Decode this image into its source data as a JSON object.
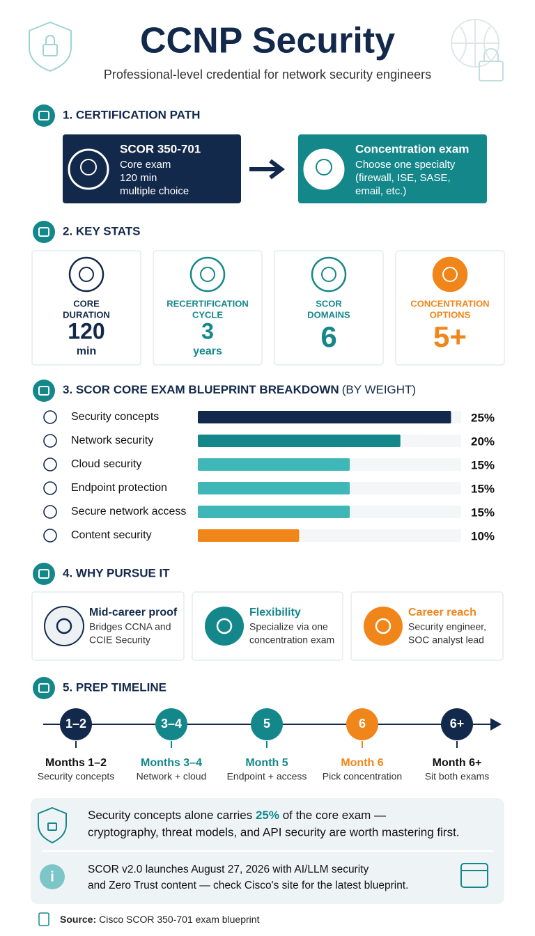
{
  "header": {
    "title": "CCNP Security",
    "subtitle": "Professional-level credential for network security engineers"
  },
  "path": {
    "heading": "1. CERTIFICATION PATH",
    "steps": [
      {
        "title": "SCOR 350-701",
        "lines": [
          "Core exam",
          "120 min",
          "multiple choice"
        ],
        "color": "#13294b"
      },
      {
        "title": "Concentration exam",
        "lines": [
          "Choose one specialty",
          "(firewall, ISE, SASE,",
          "email, etc.)"
        ],
        "color": "#14878b"
      }
    ]
  },
  "stats": {
    "heading": "2. KEY STATS",
    "cards": [
      {
        "label": [
          "CORE",
          "DURATION"
        ],
        "value": 120,
        "unit": "min",
        "color": "#13294b",
        "label_color": "#13294b"
      },
      {
        "label": [
          "RECERTIFICATION",
          "CYCLE"
        ],
        "value": 3,
        "unit": "years",
        "color": "#14878b",
        "label_color": "#14878b"
      },
      {
        "label": [
          "SCOR",
          "DOMAINS"
        ],
        "value": 6,
        "color": "#14878b",
        "label_color": "#14878b"
      },
      {
        "label": [
          "CONCENTRATION",
          "OPTIONS"
        ],
        "value": "5+",
        "color": "#f0851a",
        "label_color": "#f0851a"
      }
    ]
  },
  "chart_data": {
    "type": "bar",
    "orientation": "horizontal",
    "title": "3. SCOR CORE EXAM BLUEPRINT BREAKDOWN",
    "subtitle": "(BY WEIGHT)",
    "categories": [
      "Security concepts",
      "Network security",
      "Cloud security",
      "Endpoint protection",
      "Secure network access",
      "Content security"
    ],
    "values": [
      25,
      20,
      15,
      15,
      15,
      10
    ],
    "value_labels": [
      "25%",
      "20%",
      "15%",
      "15%",
      "15%",
      "10%"
    ],
    "colors": [
      "#13294b",
      "#14878b",
      "#3fb6b8",
      "#3fb6b8",
      "#3fb6b8",
      "#f0851a"
    ],
    "xlim": [
      0,
      26
    ]
  },
  "why": {
    "heading": "4. WHY PURSUE IT",
    "cards": [
      {
        "title": "Mid-career proof",
        "lines": [
          "Bridges CCNA and",
          "CCIE Security"
        ],
        "color": "#13294b"
      },
      {
        "title": "Flexibility",
        "lines": [
          "Specialize via one",
          "concentration exam"
        ],
        "color": "#14878b"
      },
      {
        "title": "Career reach",
        "lines": [
          "Security engineer,",
          "SOC analyst lead"
        ],
        "color": "#f0851a"
      }
    ]
  },
  "timeline": {
    "heading": "5. PREP TIMELINE",
    "steps": [
      {
        "badge": "1–2",
        "title": "Months 1–2",
        "desc": "Security concepts",
        "color": "#13294b"
      },
      {
        "badge": "3–4",
        "title": "Months 3–4",
        "desc": "Network + cloud",
        "color": "#14878b"
      },
      {
        "badge": "5",
        "title": "Month 5",
        "desc": "Endpoint + access",
        "color": "#14878b"
      },
      {
        "badge": "6",
        "title": "Month 6",
        "desc": "Pick concentration",
        "color": "#f0851a"
      },
      {
        "badge": "6+",
        "title": "Month 6+",
        "desc": "Sit both exams",
        "color": "#13294b"
      }
    ]
  },
  "notes": [
    {
      "line1": [
        "Security concepts alone carries ",
        "25%",
        " of the core exam —"
      ],
      "line2": "cryptography, threat models, and API security are worth mastering first."
    },
    {
      "lines": [
        "SCOR v2.0 launches August 27, 2026 with AI/LLM security",
        "and Zero Trust content — check Cisco's site for the latest blueprint."
      ]
    }
  ],
  "source": {
    "label": "Source:",
    "text": "Cisco SCOR 350-701 exam blueprint"
  }
}
